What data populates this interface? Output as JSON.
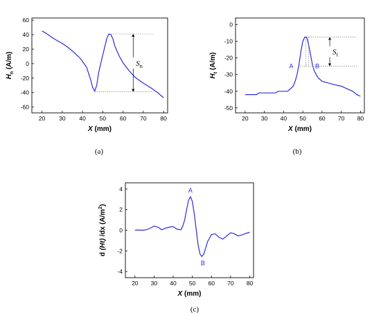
{
  "chart_data": [
    {
      "id": "a",
      "type": "line",
      "caption": "(a)",
      "xlabel": {
        "sym": "X",
        "unit": "(mm)"
      },
      "ylabel": {
        "sym": "H",
        "sub": "n",
        "unit": "(A/m)"
      },
      "xlim": [
        15,
        82
      ],
      "ylim": [
        -68,
        63
      ],
      "xticks": [
        20,
        30,
        40,
        50,
        60,
        70,
        80
      ],
      "yticks": [
        -60,
        -40,
        -20,
        0,
        20,
        40,
        60
      ],
      "line_color": "#2b2bd9",
      "x": [
        20,
        22,
        25,
        28,
        30,
        33,
        36,
        39,
        42,
        44,
        45,
        46,
        47,
        48,
        50,
        52,
        53,
        54,
        55,
        56,
        58,
        60,
        63,
        66,
        70,
        74,
        77,
        80
      ],
      "values": [
        45,
        42,
        36,
        31,
        28,
        22,
        15,
        7,
        -5,
        -22,
        -33,
        -38,
        -30,
        -12,
        12,
        35,
        41,
        40,
        34,
        24,
        11,
        1,
        -10,
        -19,
        -27,
        -34,
        -40,
        -47
      ],
      "annotation": {
        "sym": "S",
        "sub": "n",
        "top": 41,
        "bottom": -39,
        "x": 65
      }
    },
    {
      "id": "b",
      "type": "line",
      "caption": "(b)",
      "xlabel": {
        "sym": "X",
        "unit": "(mm)"
      },
      "ylabel": {
        "sym": "H",
        "sub": "t",
        "unit": "(A/m)"
      },
      "xlim": [
        15,
        82
      ],
      "ylim": [
        -53,
        4
      ],
      "xticks": [
        20,
        30,
        40,
        50,
        60,
        70,
        80
      ],
      "yticks": [
        -50,
        -40,
        -30,
        -20,
        -10,
        0
      ],
      "line_color": "#2b2bd9",
      "x": [
        20,
        26,
        27,
        36,
        37,
        42,
        43,
        45,
        46,
        47,
        48,
        49,
        50,
        51,
        52,
        53,
        54,
        55,
        56,
        57,
        58,
        60,
        63,
        66,
        70,
        74,
        76,
        78,
        80
      ],
      "values": [
        -42,
        -42,
        -41,
        -41,
        -40,
        -40,
        -39,
        -37,
        -34,
        -30,
        -24,
        -16,
        -10,
        -7.5,
        -7.5,
        -12,
        -18,
        -24,
        -28,
        -30,
        -32,
        -34,
        -35,
        -36,
        -37,
        -39,
        -40,
        -42,
        -43
      ],
      "points": [
        {
          "label": "A",
          "x": 49,
          "y": -25
        },
        {
          "label": "B",
          "x": 55,
          "y": -25
        }
      ],
      "annotation": {
        "sym": "S",
        "sub": "t",
        "top": -7.5,
        "bottom": -25,
        "x": 64
      }
    },
    {
      "id": "c",
      "type": "line",
      "caption": "(c)",
      "xlabel": {
        "sym": "X",
        "unit": "(mm)"
      },
      "ylabel": {
        "pre": "d",
        "sym": "(Ht)",
        "mid": "/dx",
        "unit": "(A/m",
        "sup": "2",
        "close": ")"
      },
      "xlim": [
        15,
        82
      ],
      "ylim": [
        -4.6,
        4.6
      ],
      "xticks": [
        20,
        30,
        40,
        50,
        60,
        70,
        80
      ],
      "yticks": [
        -4,
        -2,
        0,
        2,
        4
      ],
      "line_color": "#2b2bd9",
      "x": [
        20,
        22,
        24,
        26,
        28,
        30,
        32,
        34,
        36,
        38,
        40,
        42,
        44,
        45,
        46,
        47,
        48,
        49,
        50,
        51,
        52,
        53,
        54,
        55,
        56,
        57,
        58,
        60,
        62,
        64,
        66,
        68,
        70,
        72,
        74,
        76,
        78,
        80
      ],
      "values": [
        0,
        0.03,
        0,
        0.05,
        0.2,
        0.4,
        0.3,
        0.05,
        0.2,
        0.3,
        0.35,
        0.1,
        0.05,
        0.4,
        1.0,
        2.0,
        2.9,
        3.25,
        2.8,
        1.6,
        0.1,
        -1.4,
        -2.3,
        -2.55,
        -2.3,
        -1.7,
        -1.1,
        -0.4,
        -0.35,
        -0.7,
        -0.85,
        -0.55,
        -0.25,
        -0.35,
        -0.55,
        -0.45,
        -0.3,
        -0.2
      ],
      "points": [
        {
          "label": "A",
          "x": 49,
          "y": 3.25
        },
        {
          "label": "B",
          "x": 55.5,
          "y": -2.6
        }
      ]
    }
  ]
}
